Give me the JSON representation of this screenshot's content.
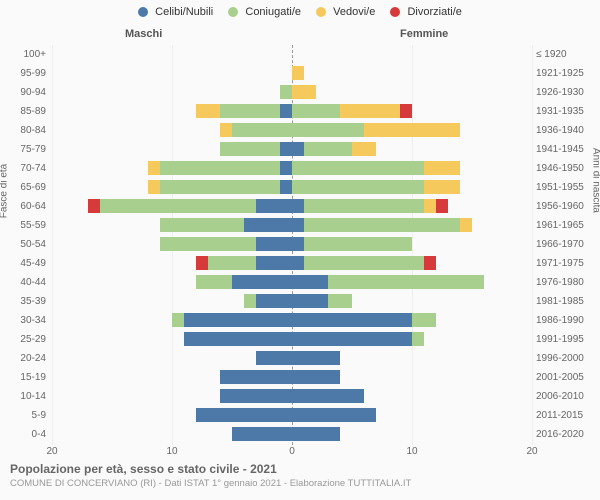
{
  "legend": {
    "items": [
      {
        "label": "Celibi/Nubili",
        "color": "#4d79a8"
      },
      {
        "label": "Coniugati/e",
        "color": "#a8cf8e"
      },
      {
        "label": "Vedovi/e",
        "color": "#f5c95b"
      },
      {
        "label": "Divorziati/e",
        "color": "#d63a3a"
      }
    ]
  },
  "gender": {
    "male": "Maschi",
    "female": "Femmine"
  },
  "axis": {
    "left_title": "Fasce di età",
    "right_title": "Anni di nascita",
    "xmax": 20,
    "xticks": [
      20,
      10,
      0,
      10,
      20
    ]
  },
  "colors": {
    "celibi": "#4d79a8",
    "coniugati": "#a8cf8e",
    "vedovi": "#f5c95b",
    "divorziati": "#d63a3a",
    "grid": "#eeeeee",
    "center": "#999999",
    "bg": "#fafafa"
  },
  "title": "Popolazione per età, sesso e stato civile - 2021",
  "subtitle": "COMUNE DI CONCERVIANO (RI) - Dati ISTAT 1° gennaio 2021 - Elaborazione TUTTITALIA.IT",
  "rows": [
    {
      "age": "100+",
      "birth": "≤ 1920",
      "m": {
        "cel": 0,
        "con": 0,
        "ved": 0,
        "div": 0
      },
      "f": {
        "cel": 0,
        "con": 0,
        "ved": 0,
        "div": 0
      }
    },
    {
      "age": "95-99",
      "birth": "1921-1925",
      "m": {
        "cel": 0,
        "con": 0,
        "ved": 0,
        "div": 0
      },
      "f": {
        "cel": 0,
        "con": 0,
        "ved": 1,
        "div": 0
      }
    },
    {
      "age": "90-94",
      "birth": "1926-1930",
      "m": {
        "cel": 0,
        "con": 1,
        "ved": 0,
        "div": 0
      },
      "f": {
        "cel": 0,
        "con": 0,
        "ved": 2,
        "div": 0
      }
    },
    {
      "age": "85-89",
      "birth": "1931-1935",
      "m": {
        "cel": 1,
        "con": 5,
        "ved": 2,
        "div": 0
      },
      "f": {
        "cel": 0,
        "con": 4,
        "ved": 5,
        "div": 1
      }
    },
    {
      "age": "80-84",
      "birth": "1936-1940",
      "m": {
        "cel": 0,
        "con": 5,
        "ved": 1,
        "div": 0
      },
      "f": {
        "cel": 0,
        "con": 6,
        "ved": 8,
        "div": 0
      }
    },
    {
      "age": "75-79",
      "birth": "1941-1945",
      "m": {
        "cel": 1,
        "con": 5,
        "ved": 0,
        "div": 0
      },
      "f": {
        "cel": 1,
        "con": 4,
        "ved": 2,
        "div": 0
      }
    },
    {
      "age": "70-74",
      "birth": "1946-1950",
      "m": {
        "cel": 1,
        "con": 10,
        "ved": 1,
        "div": 0
      },
      "f": {
        "cel": 0,
        "con": 11,
        "ved": 3,
        "div": 0
      }
    },
    {
      "age": "65-69",
      "birth": "1951-1955",
      "m": {
        "cel": 1,
        "con": 10,
        "ved": 1,
        "div": 0
      },
      "f": {
        "cel": 0,
        "con": 11,
        "ved": 3,
        "div": 0
      }
    },
    {
      "age": "60-64",
      "birth": "1956-1960",
      "m": {
        "cel": 3,
        "con": 13,
        "ved": 0,
        "div": 1
      },
      "f": {
        "cel": 1,
        "con": 10,
        "ved": 1,
        "div": 1
      }
    },
    {
      "age": "55-59",
      "birth": "1961-1965",
      "m": {
        "cel": 4,
        "con": 7,
        "ved": 0,
        "div": 0
      },
      "f": {
        "cel": 1,
        "con": 13,
        "ved": 1,
        "div": 0
      }
    },
    {
      "age": "50-54",
      "birth": "1966-1970",
      "m": {
        "cel": 3,
        "con": 8,
        "ved": 0,
        "div": 0
      },
      "f": {
        "cel": 1,
        "con": 9,
        "ved": 0,
        "div": 0
      }
    },
    {
      "age": "45-49",
      "birth": "1971-1975",
      "m": {
        "cel": 3,
        "con": 4,
        "ved": 0,
        "div": 1
      },
      "f": {
        "cel": 1,
        "con": 10,
        "ved": 0,
        "div": 1
      }
    },
    {
      "age": "40-44",
      "birth": "1976-1980",
      "m": {
        "cel": 5,
        "con": 3,
        "ved": 0,
        "div": 0
      },
      "f": {
        "cel": 3,
        "con": 13,
        "ved": 0,
        "div": 0
      }
    },
    {
      "age": "35-39",
      "birth": "1981-1985",
      "m": {
        "cel": 3,
        "con": 1,
        "ved": 0,
        "div": 0
      },
      "f": {
        "cel": 3,
        "con": 2,
        "ved": 0,
        "div": 0
      }
    },
    {
      "age": "30-34",
      "birth": "1986-1990",
      "m": {
        "cel": 9,
        "con": 1,
        "ved": 0,
        "div": 0
      },
      "f": {
        "cel": 10,
        "con": 2,
        "ved": 0,
        "div": 0
      }
    },
    {
      "age": "25-29",
      "birth": "1991-1995",
      "m": {
        "cel": 9,
        "con": 0,
        "ved": 0,
        "div": 0
      },
      "f": {
        "cel": 10,
        "con": 1,
        "ved": 0,
        "div": 0
      }
    },
    {
      "age": "20-24",
      "birth": "1996-2000",
      "m": {
        "cel": 3,
        "con": 0,
        "ved": 0,
        "div": 0
      },
      "f": {
        "cel": 4,
        "con": 0,
        "ved": 0,
        "div": 0
      }
    },
    {
      "age": "15-19",
      "birth": "2001-2005",
      "m": {
        "cel": 6,
        "con": 0,
        "ved": 0,
        "div": 0
      },
      "f": {
        "cel": 4,
        "con": 0,
        "ved": 0,
        "div": 0
      }
    },
    {
      "age": "10-14",
      "birth": "2006-2010",
      "m": {
        "cel": 6,
        "con": 0,
        "ved": 0,
        "div": 0
      },
      "f": {
        "cel": 6,
        "con": 0,
        "ved": 0,
        "div": 0
      }
    },
    {
      "age": "5-9",
      "birth": "2011-2015",
      "m": {
        "cel": 8,
        "con": 0,
        "ved": 0,
        "div": 0
      },
      "f": {
        "cel": 7,
        "con": 0,
        "ved": 0,
        "div": 0
      }
    },
    {
      "age": "0-4",
      "birth": "2016-2020",
      "m": {
        "cel": 5,
        "con": 0,
        "ved": 0,
        "div": 0
      },
      "f": {
        "cel": 4,
        "con": 0,
        "ved": 0,
        "div": 0
      }
    }
  ]
}
